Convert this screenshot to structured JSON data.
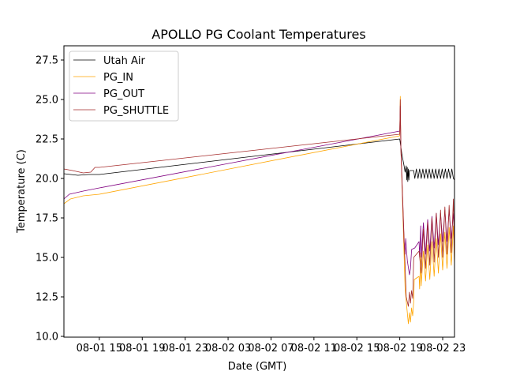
{
  "chart_data": {
    "type": "line",
    "title": "APOLLO PG Coolant Temperatures",
    "xlabel": "Date (GMT)",
    "ylabel": "Temperature (C)",
    "x_units": "hours since 08-01 00:00",
    "xlim": [
      11.7,
      48.1
    ],
    "ylim": [
      9.95,
      28.4
    ],
    "grid": false,
    "legend_placement": "top-left",
    "x_ticks": [
      {
        "value": 15,
        "label": "08-01 15"
      },
      {
        "value": 19,
        "label": "08-01 19"
      },
      {
        "value": 23,
        "label": "08-01 23"
      },
      {
        "value": 27,
        "label": "08-02 03"
      },
      {
        "value": 31,
        "label": "08-02 07"
      },
      {
        "value": 35,
        "label": "08-02 11"
      },
      {
        "value": 39,
        "label": "08-02 15"
      },
      {
        "value": 43,
        "label": "08-02 19"
      },
      {
        "value": 47,
        "label": "08-02 23"
      }
    ],
    "y_ticks": [
      {
        "value": 10.0,
        "label": "10.0"
      },
      {
        "value": 12.5,
        "label": "12.5"
      },
      {
        "value": 15.0,
        "label": "15.0"
      },
      {
        "value": 17.5,
        "label": "17.5"
      },
      {
        "value": 20.0,
        "label": "20.0"
      },
      {
        "value": 22.5,
        "label": "22.5"
      },
      {
        "value": 25.0,
        "label": "25.0"
      },
      {
        "value": 27.5,
        "label": "27.5"
      }
    ],
    "series": [
      {
        "name": "Utah Air",
        "color": "#000000",
        "points": [
          [
            11.7,
            20.3
          ],
          [
            13,
            20.2
          ],
          [
            14,
            20.25
          ],
          [
            15,
            20.25
          ],
          [
            43.0,
            22.5
          ],
          [
            43.2,
            21.5
          ],
          [
            43.4,
            20.8
          ],
          [
            43.5,
            20.4
          ],
          [
            43.6,
            20.8
          ],
          [
            43.65,
            19.9
          ],
          [
            43.7,
            20.7
          ],
          [
            43.75,
            19.8
          ],
          [
            43.8,
            20.6
          ],
          [
            43.85,
            19.9
          ],
          [
            43.9,
            20.5
          ],
          [
            44.0,
            20.5
          ],
          [
            44.3,
            20.5
          ],
          [
            44.4,
            20.0
          ],
          [
            44.55,
            20.6
          ],
          [
            44.7,
            20.0
          ],
          [
            44.85,
            20.6
          ],
          [
            45.0,
            20.0
          ],
          [
            45.15,
            20.6
          ],
          [
            45.3,
            20.0
          ],
          [
            45.45,
            20.6
          ],
          [
            45.6,
            20.0
          ],
          [
            45.75,
            20.6
          ],
          [
            45.9,
            20.0
          ],
          [
            46.05,
            20.6
          ],
          [
            46.2,
            20.0
          ],
          [
            46.35,
            20.6
          ],
          [
            46.5,
            20.0
          ],
          [
            46.65,
            20.6
          ],
          [
            46.8,
            20.0
          ],
          [
            46.95,
            20.6
          ],
          [
            47.1,
            20.0
          ],
          [
            47.25,
            20.6
          ],
          [
            47.4,
            20.0
          ],
          [
            47.55,
            20.6
          ],
          [
            47.7,
            20.0
          ],
          [
            47.85,
            20.6
          ],
          [
            48.0,
            20.0
          ],
          [
            48.1,
            19.9
          ]
        ]
      },
      {
        "name": "PG_IN",
        "color": "#ffa500",
        "points": [
          [
            11.7,
            18.4
          ],
          [
            12.3,
            18.7
          ],
          [
            13.5,
            18.9
          ],
          [
            15,
            19.0
          ],
          [
            43.0,
            22.7
          ],
          [
            43.05,
            25.2
          ],
          [
            43.1,
            22.0
          ],
          [
            43.5,
            13.0
          ],
          [
            43.8,
            10.8
          ],
          [
            43.9,
            11.5
          ],
          [
            44.0,
            10.9
          ],
          [
            44.1,
            11.8
          ],
          [
            44.2,
            11.3
          ],
          [
            44.3,
            12.2
          ],
          [
            44.35,
            13.6
          ],
          [
            44.8,
            13.8
          ],
          [
            44.85,
            13.0
          ],
          [
            44.95,
            15.3
          ],
          [
            45.0,
            13.2
          ],
          [
            45.2,
            15.4
          ],
          [
            45.4,
            13.5
          ],
          [
            45.6,
            15.8
          ],
          [
            45.8,
            13.6
          ],
          [
            46.0,
            16.0
          ],
          [
            46.2,
            13.8
          ],
          [
            46.4,
            16.2
          ],
          [
            46.6,
            14.0
          ],
          [
            46.8,
            16.5
          ],
          [
            47.0,
            14.2
          ],
          [
            47.2,
            16.6
          ],
          [
            47.4,
            14.3
          ],
          [
            47.6,
            16.9
          ],
          [
            47.8,
            14.5
          ],
          [
            48.0,
            17.0
          ],
          [
            48.1,
            14.5
          ]
        ]
      },
      {
        "name": "PG_OUT",
        "color": "#800080",
        "points": [
          [
            11.7,
            18.7
          ],
          [
            12.2,
            19.0
          ],
          [
            13.5,
            19.2
          ],
          [
            15,
            19.4
          ],
          [
            43.0,
            23.0
          ],
          [
            43.05,
            24.6
          ],
          [
            43.1,
            22.0
          ],
          [
            43.4,
            16.0
          ],
          [
            43.5,
            15.2
          ],
          [
            43.55,
            16.2
          ],
          [
            43.7,
            14.8
          ],
          [
            43.9,
            13.9
          ],
          [
            44.0,
            14.3
          ],
          [
            44.1,
            15.5
          ],
          [
            44.4,
            15.6
          ],
          [
            44.8,
            16.0
          ],
          [
            44.85,
            15.0
          ],
          [
            44.95,
            17.0
          ],
          [
            45.0,
            15.0
          ],
          [
            45.2,
            17.2
          ],
          [
            45.4,
            15.2
          ],
          [
            45.6,
            17.4
          ],
          [
            45.8,
            15.4
          ],
          [
            46.0,
            17.6
          ],
          [
            46.2,
            15.6
          ],
          [
            46.4,
            17.8
          ],
          [
            46.6,
            15.8
          ],
          [
            46.8,
            17.8
          ],
          [
            47.0,
            16.0
          ],
          [
            47.2,
            18.0
          ],
          [
            47.4,
            16.0
          ],
          [
            47.6,
            18.0
          ],
          [
            47.8,
            16.2
          ],
          [
            48.0,
            17.8
          ],
          [
            48.1,
            16.5
          ]
        ]
      },
      {
        "name": "PG_SHUTTLE",
        "color": "#a52a2a",
        "points": [
          [
            11.7,
            20.6
          ],
          [
            12.5,
            20.5
          ],
          [
            13.5,
            20.35
          ],
          [
            14.2,
            20.4
          ],
          [
            14.6,
            20.7
          ],
          [
            15,
            20.7
          ],
          [
            43.0,
            22.8
          ],
          [
            43.05,
            25.0
          ],
          [
            43.1,
            22.0
          ],
          [
            43.6,
            12.5
          ],
          [
            43.8,
            11.9
          ],
          [
            43.9,
            12.8
          ],
          [
            44.0,
            12.1
          ],
          [
            44.1,
            12.9
          ],
          [
            44.2,
            12.4
          ],
          [
            44.3,
            15.0
          ],
          [
            44.8,
            15.4
          ],
          [
            45.0,
            14.0
          ],
          [
            45.2,
            16.8
          ],
          [
            45.4,
            14.3
          ],
          [
            45.6,
            17.2
          ],
          [
            45.8,
            14.5
          ],
          [
            46.0,
            17.5
          ],
          [
            46.2,
            14.7
          ],
          [
            46.4,
            17.8
          ],
          [
            46.6,
            15.0
          ],
          [
            46.8,
            18.0
          ],
          [
            47.0,
            15.0
          ],
          [
            47.2,
            18.2
          ],
          [
            47.4,
            15.2
          ],
          [
            47.6,
            18.3
          ],
          [
            47.8,
            15.3
          ],
          [
            48.0,
            18.7
          ],
          [
            48.1,
            14.5
          ]
        ]
      }
    ]
  }
}
